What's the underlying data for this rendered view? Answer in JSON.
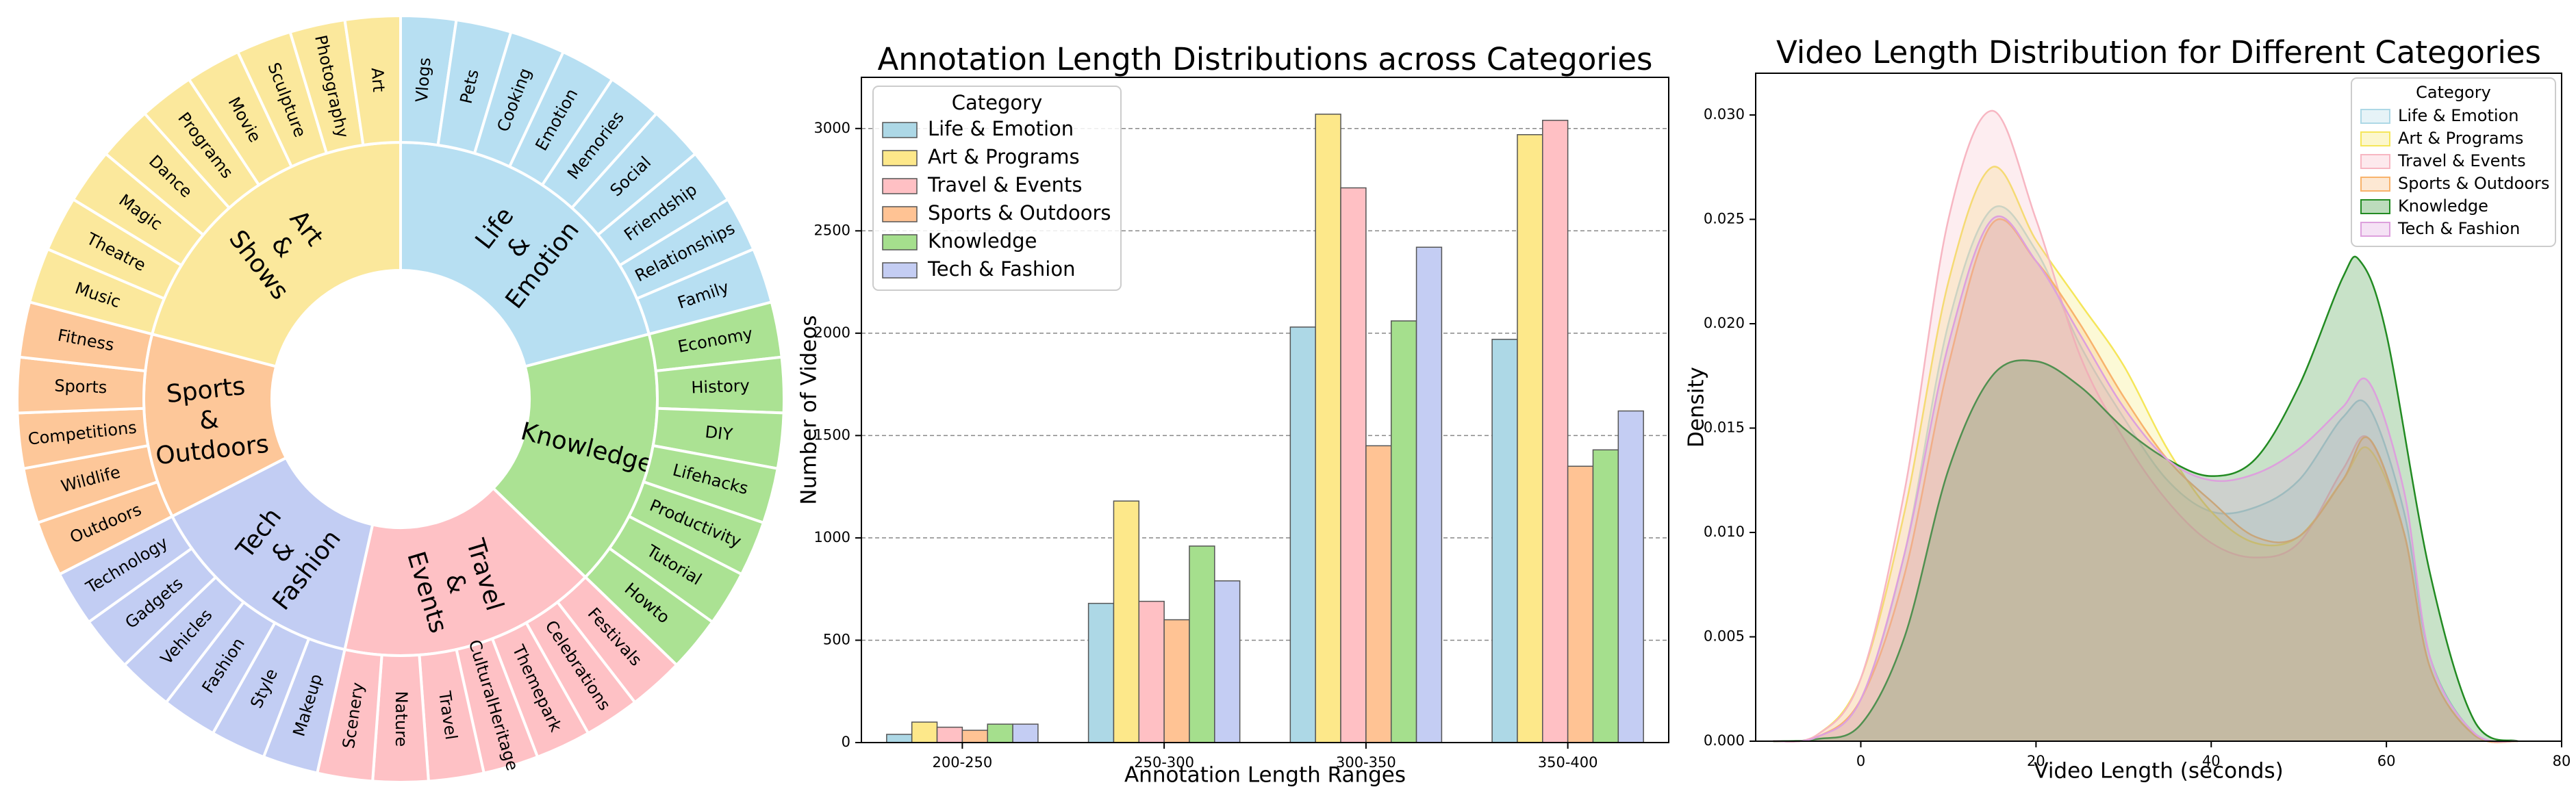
{
  "chart_data": [
    {
      "type": "sunburst",
      "title": "",
      "inner": [
        {
          "label": "Life & Emotion",
          "color": "#b7dff2",
          "children": [
            "Vlogs",
            "Pets",
            "Cooking",
            "Emotion",
            "Memories",
            "Social",
            "Friendship",
            "Relationships",
            "Family"
          ]
        },
        {
          "label": "Knowledge",
          "color": "#abe293",
          "children": [
            "Economy",
            "History",
            "DIY",
            "Lifehacks",
            "Productivity",
            "Tutorial",
            "Howto"
          ]
        },
        {
          "label": "Travel & Events",
          "color": "#fec1c5",
          "children": [
            "Festivals",
            "Celebrations",
            "Themepark",
            "CulturalHeritage",
            "Travel",
            "Nature",
            "Scenery"
          ]
        },
        {
          "label": "Tech & Fashion",
          "color": "#c2cdf3",
          "children": [
            "Makeup",
            "Style",
            "Fashion",
            "Vehicles",
            "Gadgets",
            "Technology"
          ]
        },
        {
          "label": "Sports & Outdoors",
          "color": "#fdc799",
          "children": [
            "Outdoors",
            "Wildlife",
            "Competitions",
            "Sports",
            "Fitness"
          ]
        },
        {
          "label": "Art & Shows",
          "color": "#fbe89c",
          "children": [
            "Music",
            "Theatre",
            "Magic",
            "Dance",
            "Programs",
            "Movie",
            "Sculpture",
            "Photography",
            "Art"
          ]
        }
      ]
    },
    {
      "type": "bar",
      "title": "Annotation Length Distributions across Categories",
      "xlabel": "Annotation Length Ranges",
      "ylabel": "Number of Videos",
      "categories": [
        "200-250",
        "250-300",
        "300-350",
        "350-400"
      ],
      "ylim": [
        0,
        3250
      ],
      "yticks": [
        0,
        500,
        1000,
        1500,
        2000,
        2500,
        3000
      ],
      "grid": "y-dashed",
      "legend_title": "Category",
      "legend_position": "top-left",
      "series": [
        {
          "name": "Life & Emotion",
          "color": "#add8e6",
          "values": [
            40,
            680,
            2030,
            1970
          ]
        },
        {
          "name": "Art & Programs",
          "color": "#fde88a",
          "values": [
            100,
            1180,
            3070,
            2970
          ]
        },
        {
          "name": "Travel & Events",
          "color": "#ffc0c4",
          "values": [
            75,
            690,
            2710,
            3040
          ]
        },
        {
          "name": "Sports & Outdoors",
          "color": "#ffc394",
          "values": [
            60,
            600,
            1450,
            1350
          ]
        },
        {
          "name": "Knowledge",
          "color": "#a5df8d",
          "values": [
            90,
            960,
            2060,
            1430
          ]
        },
        {
          "name": "Tech & Fashion",
          "color": "#c4cdf3",
          "values": [
            90,
            790,
            2420,
            1620
          ]
        }
      ]
    },
    {
      "type": "area",
      "title": "Video Length Distribution for Different Categories",
      "xlabel": "Video Length (seconds)",
      "ylabel": "Density",
      "xlim": [
        -12,
        80
      ],
      "xticks": [
        0,
        20,
        40,
        60,
        80
      ],
      "ylim": [
        0,
        0.032
      ],
      "yticks": [
        "0.000",
        "0.005",
        "0.010",
        "0.015",
        "0.020",
        "0.025",
        "0.030"
      ],
      "grid": false,
      "legend_title": "Category",
      "legend_position": "top-right",
      "series": [
        {
          "name": "Life & Emotion",
          "color": "#add8e6",
          "x": [
            -10,
            -5,
            0,
            5,
            10,
            15,
            20,
            25,
            30,
            35,
            40,
            45,
            50,
            55,
            58,
            62,
            65,
            70,
            75
          ],
          "y": [
            0,
            0.0002,
            0.002,
            0.009,
            0.02,
            0.0255,
            0.0235,
            0.019,
            0.0155,
            0.0125,
            0.011,
            0.0112,
            0.0125,
            0.0155,
            0.016,
            0.011,
            0.004,
            0.0004,
            0
          ]
        },
        {
          "name": "Art & Programs",
          "color": "#f5e65a",
          "x": [
            -10,
            -5,
            0,
            5,
            10,
            15,
            20,
            25,
            30,
            35,
            40,
            45,
            50,
            55,
            58,
            62,
            65,
            70,
            75
          ],
          "y": [
            0,
            0.0003,
            0.003,
            0.011,
            0.022,
            0.0275,
            0.024,
            0.021,
            0.018,
            0.014,
            0.011,
            0.0095,
            0.0098,
            0.0125,
            0.014,
            0.01,
            0.0035,
            0.0003,
            0
          ]
        },
        {
          "name": "Travel & Events",
          "color": "#f7b6c2",
          "x": [
            -10,
            -5,
            0,
            5,
            10,
            15,
            20,
            25,
            30,
            35,
            40,
            45,
            50,
            55,
            58,
            62,
            65,
            70,
            75
          ],
          "y": [
            0,
            0.0003,
            0.003,
            0.012,
            0.025,
            0.0302,
            0.025,
            0.0185,
            0.0145,
            0.0115,
            0.0095,
            0.0088,
            0.0095,
            0.013,
            0.0145,
            0.01,
            0.0035,
            0.0003,
            0
          ]
        },
        {
          "name": "Sports & Outdoors",
          "color": "#f8b36c",
          "x": [
            -10,
            -5,
            0,
            5,
            10,
            15,
            20,
            25,
            30,
            35,
            40,
            45,
            50,
            55,
            58,
            62,
            65,
            70,
            75
          ],
          "y": [
            0,
            0.0002,
            0.002,
            0.008,
            0.018,
            0.0248,
            0.023,
            0.02,
            0.0165,
            0.0135,
            0.0115,
            0.0098,
            0.0098,
            0.0125,
            0.0145,
            0.01,
            0.0035,
            0.0003,
            0
          ]
        },
        {
          "name": "Knowledge",
          "color": "#228b22",
          "x": [
            -10,
            -5,
            0,
            5,
            10,
            15,
            20,
            25,
            30,
            35,
            40,
            45,
            50,
            55,
            57,
            60,
            65,
            70,
            75
          ],
          "y": [
            0,
            0.0001,
            0.0008,
            0.005,
            0.013,
            0.0175,
            0.0182,
            0.017,
            0.015,
            0.0135,
            0.0127,
            0.0135,
            0.017,
            0.0222,
            0.023,
            0.0195,
            0.008,
            0.001,
            0
          ]
        },
        {
          "name": "Tech & Fashion",
          "color": "#dda0dd",
          "x": [
            -10,
            -5,
            0,
            5,
            10,
            15,
            20,
            25,
            30,
            35,
            40,
            45,
            50,
            55,
            58,
            62,
            65,
            70,
            75
          ],
          "y": [
            0,
            0.0002,
            0.002,
            0.009,
            0.019,
            0.025,
            0.023,
            0.0195,
            0.016,
            0.0135,
            0.0125,
            0.0128,
            0.014,
            0.016,
            0.0172,
            0.012,
            0.004,
            0.0004,
            0
          ]
        }
      ]
    }
  ]
}
